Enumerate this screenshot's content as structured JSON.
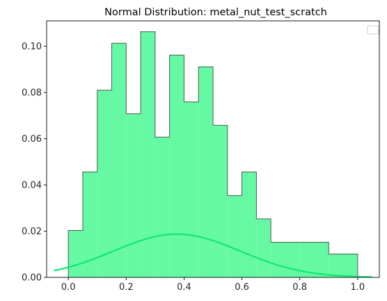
{
  "chart_data": {
    "type": "bar",
    "title": "Normal Distribution: metal_nut_test_scratch",
    "xlabel": "",
    "ylabel": "",
    "xlim": [
      -0.075,
      1.075
    ],
    "ylim": [
      0,
      0.111
    ],
    "x_ticks": [
      0.0,
      0.2,
      0.4,
      0.6,
      0.8,
      1.0
    ],
    "x_tick_labels": [
      "0.0",
      "0.2",
      "0.4",
      "0.6",
      "0.8",
      "1.0"
    ],
    "y_ticks": [
      0.0,
      0.02,
      0.04,
      0.06,
      0.08,
      0.1
    ],
    "y_tick_labels": [
      "0.00",
      "0.02",
      "0.04",
      "0.06",
      "0.08",
      "0.10"
    ],
    "grid": false,
    "legend": "top-right (empty)",
    "histogram": {
      "bin_edges": [
        0.0,
        0.05,
        0.1,
        0.15,
        0.2,
        0.25,
        0.3,
        0.35,
        0.4,
        0.45,
        0.5,
        0.55,
        0.6,
        0.65,
        0.7,
        0.8,
        0.9,
        1.0
      ],
      "values": [
        0.0203,
        0.0456,
        0.081,
        0.1013,
        0.0708,
        0.1063,
        0.0607,
        0.0962,
        0.0759,
        0.0911,
        0.0658,
        0.0354,
        0.0456,
        0.0253,
        0.0152,
        0.0152,
        0.0101
      ],
      "fill_color": "#66f9a3",
      "edge_color": "#4a5a50"
    },
    "curve": {
      "type": "line",
      "x_range": [
        -0.05,
        1.05
      ],
      "mean": 0.375,
      "sd": 0.22,
      "peak": 0.0187,
      "color": "#10e872"
    }
  }
}
